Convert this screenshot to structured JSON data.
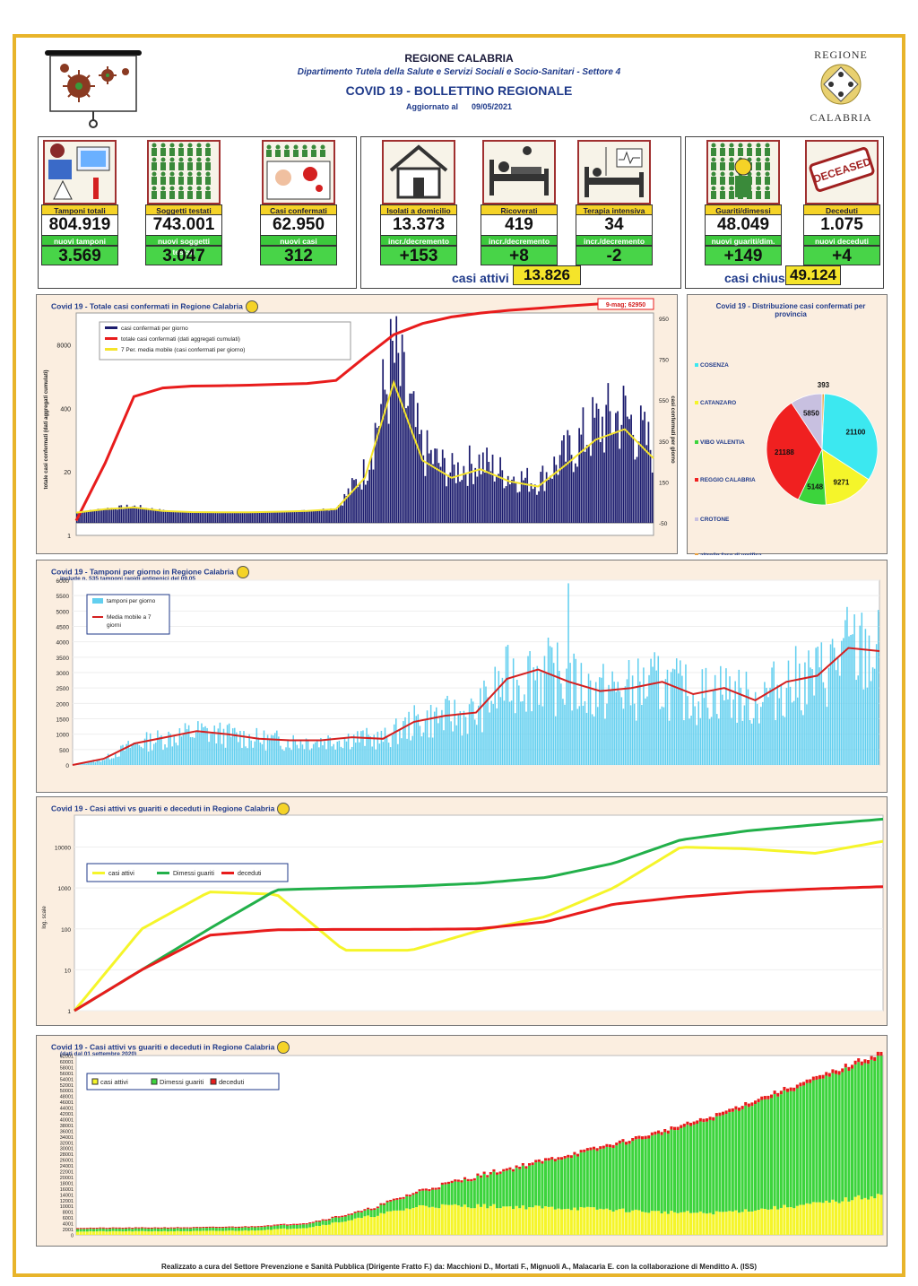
{
  "header": {
    "region": "REGIONE CALABRIA",
    "department": "Dipartimento Tutela della Salute e Servizi Sociali e Socio-Sanitari - Settore 4",
    "bulletin": "COVID 19 - BOLLETTINO REGIONALE",
    "updated_label": "Aggiornato al",
    "updated_date": "09/05/2021",
    "logo_top": "REGIONE",
    "logo_bottom": "CALABRIA"
  },
  "kpis": [
    {
      "label": "Tamponi totali",
      "value": "804.919",
      "delta_label": "nuovi tamponi",
      "delta": "3.569",
      "icon": "lab-test-icon"
    },
    {
      "label": "Soggetti testati",
      "value": "743.001",
      "delta_label": "nuovi soggetti testati",
      "delta": "3.047",
      "icon": "people-grid-icon"
    },
    {
      "label": "Casi confermati",
      "value": "62.950",
      "delta_label": "nuovi casi",
      "delta": "312",
      "icon": "virus-patient-icon"
    },
    {
      "label": "Isolati a domicilio",
      "value": "13.373",
      "delta_label": "incr./decremento",
      "delta": "+153",
      "icon": "house-icon"
    },
    {
      "label": "Ricoverati",
      "value": "419",
      "delta_label": "incr./decremento",
      "delta": "+8",
      "icon": "hospital-bed-icon"
    },
    {
      "label": "Terapia intensiva",
      "value": "34",
      "delta_label": "incr./decremento",
      "delta": "-2",
      "icon": "intensive-care-icon"
    },
    {
      "label": "Guariti/dimessi",
      "value": "48.049",
      "delta_label": "nuovi guariti/dim.",
      "delta": "+149",
      "icon": "recovered-person-icon"
    },
    {
      "label": "Deceduti",
      "value": "1.075",
      "delta_label": "nuovi deceduti",
      "delta": "+4",
      "icon": "deceased-stamp-icon"
    }
  ],
  "stamp_text": "DECEASED",
  "summary": {
    "active_label": "casi attivi",
    "active_value": "13.826",
    "closed_label": "casi chiusi",
    "closed_value": "49.124"
  },
  "colors": {
    "yellow": "#f5d327",
    "green": "#3cc83c",
    "navy": "#1c1c6e",
    "red": "#e81c1c",
    "cyan": "#3ce8f0",
    "frame": "#e8b42a"
  },
  "chart_data": [
    {
      "type": "bar",
      "title": "Covid 19 - Totale casi confermati in Regione Calabria",
      "ylabel": "totale casi confermati (dati aggregati cumulati)",
      "y2label": "casi confermati per giorno",
      "y_ticks": [
        "1",
        "20",
        "400",
        "8000"
      ],
      "y2_ticks": [
        "-50",
        "150",
        "350",
        "550",
        "750",
        "950"
      ],
      "annotation": "9-mag; 62950",
      "series": [
        {
          "name": "casi confermati per giorno",
          "color": "#1c1c6e"
        },
        {
          "name": "totale casi confermati (dati aggregati cumulati)",
          "color": "#e81c1c"
        },
        {
          "name": "7 Per. media mobile (casi confermati per giorno)",
          "color": "#f5e42a"
        }
      ],
      "daily_cumulative_approx": [
        2,
        30,
        700,
        1050,
        1150,
        1170,
        1200,
        1250,
        1300,
        1500,
        4500,
        13000,
        22000,
        30000,
        36000,
        41000,
        45000,
        50000,
        55000,
        60000,
        62950
      ],
      "daily_new_approx": [
        0,
        20,
        30,
        10,
        3,
        2,
        2,
        5,
        10,
        20,
        200,
        750,
        300,
        200,
        250,
        180,
        150,
        280,
        420,
        480,
        312
      ]
    },
    {
      "type": "pie",
      "title": "Covid 19 - Distribuzione casi confermati per provincia",
      "categories": [
        "COSENZA",
        "CATANZARO",
        "VIBO VALENTIA",
        "REGGIO CALABRIA",
        "CROTONE",
        "altro/in fase di verifica (altra Regione/ Stato Estero e sbarchi)"
      ],
      "values": [
        21100,
        9271,
        5148,
        21188,
        5850,
        393
      ],
      "colors": [
        "#3ce8f0",
        "#f5f52a",
        "#3cd43c",
        "#f02020",
        "#c8c0e0",
        "#e8a040"
      ]
    },
    {
      "type": "bar",
      "title": "Covid 19 - Tamponi per giorno in Regione Calabria",
      "subtitle": "include n. 535 tamponi rapidi antigenici del 09.05",
      "y_ticks": [
        "0",
        "500",
        "1000",
        "1500",
        "2000",
        "2500",
        "3000",
        "3500",
        "4000",
        "4500",
        "5000",
        "5500",
        "6000"
      ],
      "ylim": [
        0,
        6000
      ],
      "series": [
        {
          "name": "tamponi per giorno",
          "color": "#62cfef"
        },
        {
          "name": "Media mobile a 7 giorni",
          "color": "#d42020"
        }
      ],
      "moving_avg_approx": [
        0,
        200,
        700,
        900,
        1100,
        1000,
        850,
        800,
        800,
        900,
        850,
        1400,
        1600,
        1700,
        2800,
        3100,
        2700,
        2400,
        2500,
        2700,
        2300,
        2500,
        2100,
        2700,
        2900,
        3800,
        3700
      ]
    },
    {
      "type": "line",
      "title": "Covid 19 - Casi attivi vs guariti e deceduti in Regione Calabria",
      "ylabel": "log. scale",
      "y_ticks": [
        "1",
        "10",
        "100",
        "1000",
        "10000"
      ],
      "series": [
        {
          "name": "casi attivi",
          "color": "#f5f52a",
          "values_approx": [
            1,
            100,
            800,
            700,
            30,
            30,
            90,
            200,
            1000,
            10000,
            9000,
            7000,
            13826
          ]
        },
        {
          "name": "Dimessi guariti",
          "color": "#22b04a",
          "values_approx": [
            1,
            10,
            100,
            900,
            1000,
            1100,
            1300,
            1800,
            4000,
            15000,
            25000,
            35000,
            48049
          ]
        },
        {
          "name": "deceduti",
          "color": "#e81c1c",
          "values_approx": [
            1,
            10,
            70,
            95,
            97,
            97,
            100,
            150,
            400,
            600,
            800,
            950,
            1075
          ]
        }
      ]
    },
    {
      "type": "area",
      "title": "Covid 19 - Casi attivi vs guariti e deceduti in Regione Calabria",
      "subtitle": "(dati dal 01 settembre 2020)",
      "y_ticks": [
        "0",
        "2001",
        "4001",
        "6001",
        "8001",
        "10001",
        "12001",
        "14001",
        "16001",
        "18001",
        "20001",
        "22001",
        "24001",
        "26001",
        "28001",
        "30001",
        "32001",
        "34001",
        "36001",
        "38001",
        "40001",
        "42001",
        "44001",
        "46001",
        "48001",
        "50001",
        "52001",
        "54001",
        "56001",
        "58001",
        "60001",
        "62001"
      ],
      "ylim": [
        0,
        62001
      ],
      "series": [
        {
          "name": "casi attivi",
          "color": "#f5f52a"
        },
        {
          "name": "Dimessi guariti",
          "color": "#3cd43c"
        },
        {
          "name": "deceduti",
          "color": "#e81c1c"
        }
      ]
    }
  ],
  "footer": "Realizzato a cura del Settore Prevenzione e Sanità Pubblica (Dirigente Fratto F.) da: Macchioni D., Mortati F., Mignuoli A., Malacaria E. con la collaborazione di Menditto A. (ISS)"
}
